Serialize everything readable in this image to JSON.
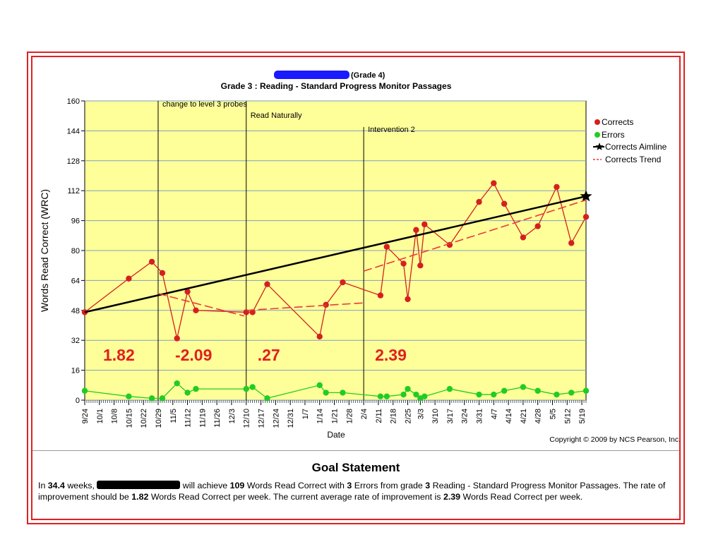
{
  "chart_data": {
    "type": "line",
    "title": "(Grade 4)",
    "subtitle": "Grade 3 : Reading - Standard Progress Monitor Passages",
    "xlabel": "Date",
    "ylabel": "Words Read Correct (WRC)",
    "ylim": [
      0,
      160
    ],
    "yticks": [
      0,
      16,
      32,
      48,
      64,
      80,
      96,
      112,
      128,
      144,
      160
    ],
    "grid": true,
    "legend_position": "right",
    "date_ticks": [
      "9/24",
      "10/1",
      "10/8",
      "10/15",
      "10/22",
      "10/29",
      "11/5",
      "11/12",
      "11/19",
      "11/26",
      "12/3",
      "12/10",
      "12/17",
      "12/24",
      "12/31",
      "1/7",
      "1/14",
      "1/21",
      "1/28",
      "2/4",
      "2/11",
      "2/18",
      "2/25",
      "3/3",
      "3/10",
      "3/17",
      "3/24",
      "3/31",
      "4/7",
      "4/14",
      "4/21",
      "4/28",
      "5/5",
      "5/12",
      "5/19"
    ],
    "series": [
      {
        "name": "Corrects",
        "color": "#d42020",
        "marker": "circle",
        "x": [
          "9/24",
          "10/15",
          "10/26",
          "10/31",
          "11/7",
          "11/12",
          "11/16",
          "12/10",
          "12/13",
          "12/20",
          "1/14",
          "1/17",
          "1/25",
          "2/12",
          "2/15",
          "2/23",
          "2/25",
          "3/1",
          "3/3",
          "3/5",
          "3/17",
          "3/31",
          "4/7",
          "4/12",
          "4/21",
          "4/28",
          "5/7",
          "5/14",
          "5/21"
        ],
        "values": [
          47,
          65,
          74,
          68,
          33,
          58,
          48,
          47,
          47,
          62,
          34,
          51,
          63,
          56,
          82,
          73,
          54,
          91,
          72,
          94,
          83,
          106,
          116,
          105,
          87,
          93,
          114,
          84,
          98
        ]
      },
      {
        "name": "Errors",
        "color": "#22cc22",
        "marker": "circle",
        "x": [
          "9/24",
          "10/15",
          "10/26",
          "10/31",
          "11/7",
          "11/12",
          "11/16",
          "12/10",
          "12/13",
          "12/20",
          "1/14",
          "1/17",
          "1/25",
          "2/12",
          "2/15",
          "2/23",
          "2/25",
          "3/1",
          "3/3",
          "3/5",
          "3/17",
          "3/31",
          "4/7",
          "4/12",
          "4/21",
          "4/28",
          "5/7",
          "5/14",
          "5/21"
        ],
        "values": [
          5,
          2,
          1,
          1,
          9,
          4,
          6,
          6,
          7,
          1,
          8,
          4,
          4,
          2,
          2,
          3,
          6,
          3,
          1,
          2,
          6,
          3,
          3,
          5,
          7,
          5,
          3,
          4,
          5
        ]
      },
      {
        "name": "Corrects Aimline",
        "color": "#000000",
        "marker": "star",
        "x": [
          "9/24",
          "5/21"
        ],
        "values": [
          47,
          109
        ]
      },
      {
        "name": "Corrects Trend",
        "color": "#e83a3a",
        "style": "dashed",
        "segments": [
          {
            "x": [
              "10/29",
              "12/9"
            ],
            "values": [
              57,
              45
            ]
          },
          {
            "x": [
              "12/10",
              "2/4"
            ],
            "values": [
              48,
              52
            ]
          },
          {
            "x": [
              "2/4",
              "5/21"
            ],
            "values": [
              69,
              107
            ]
          }
        ]
      }
    ],
    "phase_lines": [
      {
        "date": "10/29",
        "label": "change to level 3 probes",
        "rate": "-2.09"
      },
      {
        "date": "12/10",
        "label": "Read Naturally",
        "rate": ".27"
      },
      {
        "date": "2/4",
        "label": "Intervention 2",
        "rate": "2.39"
      }
    ],
    "initial_rate": "1.82",
    "copyright": "Copyright © 2009 by NCS Pearson, Inc."
  },
  "goal": {
    "title": "Goal Statement",
    "p1": "In ",
    "weeks": "34.4",
    "p2": " weeks, ",
    "p3": " will achieve ",
    "wrc": "109",
    "p4": " Words Read Correct with ",
    "errors": "3",
    "p5": " Errors from grade ",
    "grade": "3",
    "p6": " Reading - Standard Progress Monitor Passages.  The rate of improvement should be ",
    "rate_should": "1.82",
    "p7": " Words Read Correct per week. The current average rate of improvement is ",
    "rate_current": "2.39",
    "p8": " Words Read Correct per week."
  }
}
